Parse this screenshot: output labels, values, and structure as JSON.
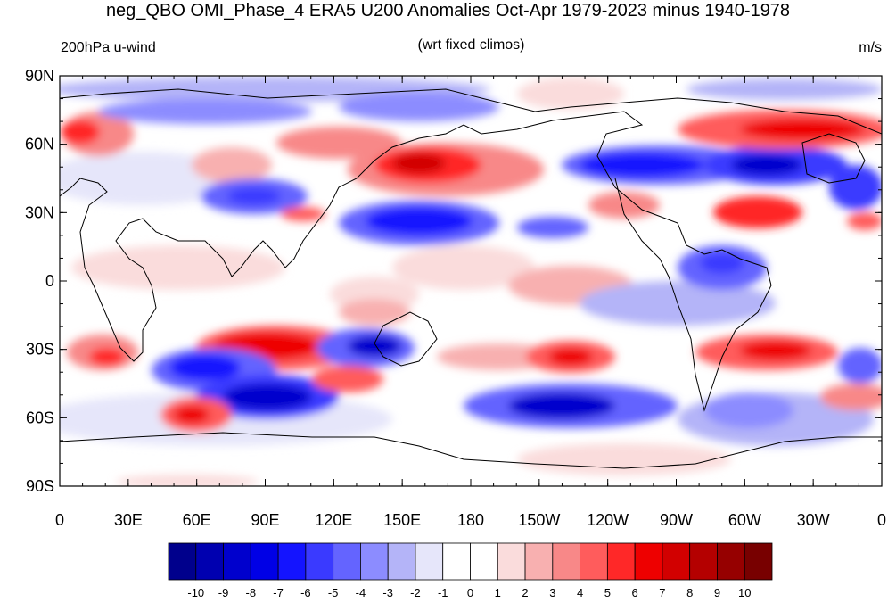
{
  "title": "neg_QBO OMI_Phase_4 ERA5 U200 Anomalies Oct-Apr 1979-2023 minus 1940-1978",
  "subtitle_left": "200hPa u-wind",
  "subtitle_center": "(wrt fixed climos)",
  "subtitle_right": "m/s",
  "map": {
    "projection": "cylindrical equidistant",
    "lon_range": [
      0,
      360
    ],
    "lat_range": [
      -90,
      90
    ],
    "lat_ticks": [
      "90N",
      "60N",
      "30N",
      "0",
      "30S",
      "60S",
      "90S"
    ],
    "lon_ticks": [
      "0",
      "30E",
      "60E",
      "90E",
      "120E",
      "150E",
      "180",
      "150W",
      "120W",
      "90W",
      "60W",
      "30W",
      "0"
    ]
  },
  "colorbar": {
    "labels": [
      "-10",
      "-9",
      "-8",
      "-7",
      "-6",
      "-5",
      "-4",
      "-3",
      "-2",
      "-1",
      "0",
      "1",
      "2",
      "3",
      "4",
      "5",
      "6",
      "7",
      "8",
      "9",
      "10"
    ],
    "colors": [
      "#00008c",
      "#0000b0",
      "#0000cd",
      "#0000e6",
      "#1414ff",
      "#3a3aff",
      "#6464ff",
      "#8c8cff",
      "#b4b4f8",
      "#e6e6fa",
      "#ffffff",
      "#ffffff",
      "#fadcdc",
      "#f8b0b0",
      "#f88888",
      "#ff5c5c",
      "#ff2828",
      "#ee0000",
      "#d20000",
      "#b40000",
      "#960000",
      "#780000"
    ]
  }
}
